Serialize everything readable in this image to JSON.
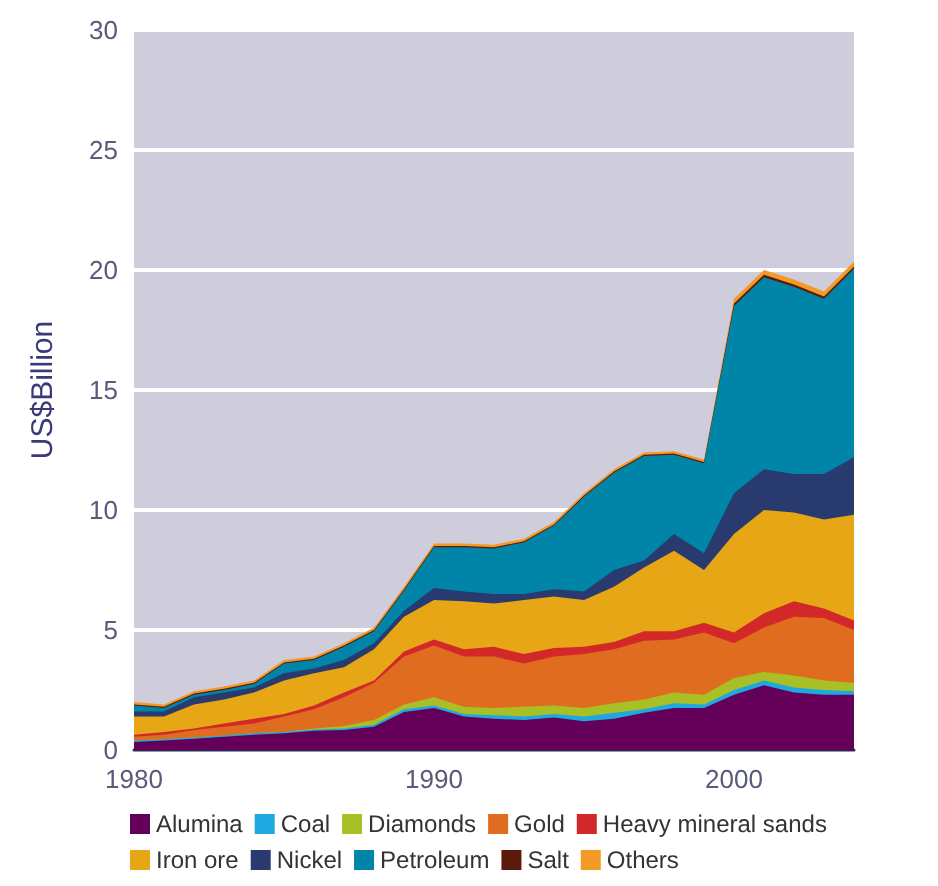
{
  "chart_data": {
    "type": "area",
    "stacked": true,
    "ylabel": "US$Billion",
    "x": [
      1980,
      1981,
      1982,
      1983,
      1984,
      1985,
      1986,
      1987,
      1988,
      1989,
      1990,
      1991,
      1992,
      1993,
      1994,
      1995,
      1996,
      1997,
      1998,
      1999,
      2000,
      2001,
      2002,
      2003,
      2004
    ],
    "xlim": [
      1980,
      2004
    ],
    "xticks": [
      1980,
      1990,
      2000
    ],
    "ylim": [
      0,
      30
    ],
    "yticks": [
      0,
      5,
      10,
      15,
      20,
      25,
      30
    ],
    "grid": "y",
    "legend": "bottom",
    "marker": "none",
    "series": [
      {
        "name": "Alumina",
        "color": "#65005a",
        "values": [
          0.33,
          0.4,
          0.47,
          0.55,
          0.64,
          0.7,
          0.8,
          0.83,
          0.97,
          1.58,
          1.75,
          1.4,
          1.3,
          1.25,
          1.35,
          1.2,
          1.3,
          1.55,
          1.75,
          1.75,
          2.3,
          2.7,
          2.4,
          2.3,
          2.3
        ]
      },
      {
        "name": "Coal",
        "color": "#1fa8e0",
        "values": [
          0.07,
          0.05,
          0.05,
          0.05,
          0.06,
          0.05,
          0.05,
          0.07,
          0.08,
          0.12,
          0.1,
          0.1,
          0.15,
          0.15,
          0.15,
          0.2,
          0.25,
          0.15,
          0.2,
          0.15,
          0.2,
          0.2,
          0.2,
          0.2,
          0.15
        ]
      },
      {
        "name": "Diamonds",
        "color": "#a8c026",
        "values": [
          0,
          0,
          0,
          0,
          0,
          0,
          0.05,
          0.1,
          0.2,
          0.2,
          0.35,
          0.3,
          0.3,
          0.4,
          0.35,
          0.35,
          0.4,
          0.4,
          0.45,
          0.4,
          0.5,
          0.35,
          0.5,
          0.4,
          0.35
        ]
      },
      {
        "name": "Gold",
        "color": "#e06c1f",
        "values": [
          0.15,
          0.19,
          0.31,
          0.37,
          0.4,
          0.65,
          0.8,
          1.2,
          1.55,
          2.0,
          2.15,
          2.1,
          2.15,
          1.8,
          2.05,
          2.25,
          2.25,
          2.45,
          2.2,
          2.6,
          1.45,
          1.85,
          2.45,
          2.6,
          2.2
        ]
      },
      {
        "name": "Heavy mineral sands",
        "color": "#d3282a",
        "values": [
          0.09,
          0.11,
          0.07,
          0.13,
          0.2,
          0.1,
          0.15,
          0.2,
          0.1,
          0.2,
          0.25,
          0.3,
          0.4,
          0.4,
          0.35,
          0.3,
          0.3,
          0.4,
          0.35,
          0.4,
          0.45,
          0.6,
          0.65,
          0.4,
          0.4
        ]
      },
      {
        "name": "Iron ore",
        "color": "#e6a615",
        "values": [
          0.76,
          0.65,
          1.0,
          1.0,
          1.1,
          1.4,
          1.35,
          1.05,
          1.3,
          1.45,
          1.65,
          2.0,
          1.8,
          2.25,
          2.15,
          1.95,
          2.3,
          2.65,
          3.35,
          2.2,
          4.1,
          4.3,
          3.7,
          3.7,
          4.4
        ]
      },
      {
        "name": "Nickel",
        "color": "#283a6e",
        "values": [
          0.2,
          0.2,
          0.3,
          0.3,
          0.2,
          0.3,
          0.2,
          0.3,
          0.25,
          0.25,
          0.5,
          0.4,
          0.4,
          0.25,
          0.3,
          0.35,
          0.7,
          0.3,
          0.7,
          0.7,
          1.7,
          1.7,
          1.6,
          1.9,
          2.4
        ]
      },
      {
        "name": "Petroleum",
        "color": "#0085a8",
        "values": [
          0.25,
          0.15,
          0.1,
          0.1,
          0.15,
          0.4,
          0.35,
          0.55,
          0.5,
          0.85,
          1.7,
          1.85,
          1.9,
          2.15,
          2.65,
          3.95,
          4.05,
          4.35,
          3.3,
          3.75,
          7.8,
          8.0,
          7.8,
          7.3,
          7.85
        ]
      },
      {
        "name": "Salt",
        "color": "#5a1a0a",
        "values": [
          0.05,
          0.05,
          0.05,
          0.05,
          0.05,
          0.05,
          0.05,
          0.05,
          0.05,
          0.05,
          0.05,
          0.05,
          0.05,
          0.05,
          0.05,
          0.05,
          0.05,
          0.05,
          0.05,
          0.05,
          0.1,
          0.1,
          0.1,
          0.1,
          0.1
        ]
      },
      {
        "name": "Others",
        "color": "#f39a26",
        "values": [
          0.1,
          0.1,
          0.1,
          0.1,
          0.1,
          0.1,
          0.1,
          0.1,
          0.1,
          0.1,
          0.1,
          0.1,
          0.1,
          0.1,
          0.1,
          0.1,
          0.1,
          0.1,
          0.1,
          0.1,
          0.2,
          0.2,
          0.2,
          0.2,
          0.2
        ]
      }
    ]
  }
}
